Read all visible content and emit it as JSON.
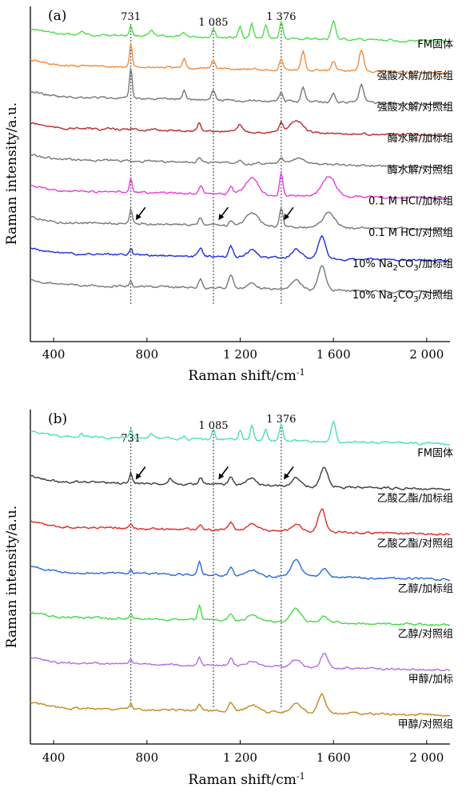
{
  "chart_data": [
    {
      "type": "line",
      "panel_label": "(a)",
      "xlabel": "Raman shift/cm",
      "xlabel_sup": "-1",
      "ylabel": "Raman intensity/a.u.",
      "xlim": [
        300,
        2100
      ],
      "x_ticks": [
        400,
        800,
        1200,
        1600,
        2000
      ],
      "x_tick_labels": [
        "400",
        "800",
        "1 200",
        "1 600",
        "2 000"
      ],
      "reference_lines": [
        {
          "x": 731,
          "label": "731"
        },
        {
          "x": 1085,
          "label": "1 085"
        },
        {
          "x": 1376,
          "label": "1 376"
        }
      ],
      "arrows_on_series": 6,
      "arrow_x": [
        745,
        1100,
        1380
      ],
      "series": [
        {
          "name": "FM固体",
          "color": "#4ddc4a",
          "offset": 0,
          "peaks": [
            [
              731,
              0.6,
              8
            ],
            [
              1085,
              0.5,
              10
            ],
            [
              1200,
              0.6,
              10
            ],
            [
              1250,
              0.8,
              10
            ],
            [
              1310,
              0.7,
              10
            ],
            [
              1376,
              0.9,
              10
            ],
            [
              1600,
              1.0,
              14
            ],
            [
              520,
              0.2,
              10
            ],
            [
              820,
              0.25,
              12
            ],
            [
              960,
              0.2,
              10
            ]
          ]
        },
        {
          "name": "强酸水解/加标组",
          "color": "#f08c3c",
          "offset": 1,
          "peaks": [
            [
              731,
              1.3,
              8
            ],
            [
              960,
              0.5,
              10
            ],
            [
              1085,
              0.5,
              10
            ],
            [
              1376,
              0.6,
              10
            ],
            [
              1470,
              1.0,
              12
            ],
            [
              1600,
              0.5,
              12
            ],
            [
              1720,
              1.2,
              14
            ]
          ]
        },
        {
          "name": "强酸水解/对照组",
          "color": "#707b78",
          "offset": 2,
          "peaks": [
            [
              731,
              1.7,
              8
            ],
            [
              960,
              0.5,
              10
            ],
            [
              1085,
              0.5,
              10
            ],
            [
              1376,
              0.5,
              10
            ],
            [
              1470,
              0.8,
              12
            ],
            [
              1600,
              0.5,
              12
            ],
            [
              1720,
              1.0,
              14
            ]
          ]
        },
        {
          "name": "酶水解/加标组",
          "color": "#b82c2c",
          "offset": 3,
          "peaks": [
            [
              1025,
              0.5,
              10
            ],
            [
              1200,
              0.4,
              14
            ],
            [
              1376,
              0.5,
              12
            ],
            [
              1440,
              0.7,
              40
            ]
          ]
        },
        {
          "name": "酶水解/对照组",
          "color": "#707b78",
          "offset": 4,
          "peaks": [
            [
              1025,
              0.3,
              10
            ],
            [
              1200,
              0.2,
              14
            ],
            [
              1376,
              0.3,
              12
            ],
            [
              1450,
              0.3,
              40
            ]
          ]
        },
        {
          "name": "0.1 M HCl/加标组",
          "color": "#e63ed8",
          "offset": 5,
          "peaks": [
            [
              731,
              0.8,
              8
            ],
            [
              1030,
              0.4,
              12
            ],
            [
              1160,
              0.4,
              12
            ],
            [
              1250,
              0.9,
              40
            ],
            [
              1376,
              1.2,
              10
            ],
            [
              1580,
              1.1,
              40
            ]
          ]
        },
        {
          "name": "0.1 M HCl/对照组",
          "color": "#707b78",
          "offset": 6,
          "peaks": [
            [
              731,
              0.8,
              8
            ],
            [
              1030,
              0.4,
              12
            ],
            [
              1160,
              0.3,
              12
            ],
            [
              1250,
              0.7,
              40
            ],
            [
              1376,
              1.1,
              10
            ],
            [
              1580,
              0.8,
              40
            ]
          ]
        },
        {
          "name": "10% Na2CO3/加标组",
          "color": "#1e2fd8",
          "offset": 7,
          "peaks": [
            [
              731,
              0.4,
              8
            ],
            [
              1030,
              0.5,
              12
            ],
            [
              1160,
              0.6,
              14
            ],
            [
              1250,
              0.4,
              30
            ],
            [
              1440,
              0.5,
              30
            ],
            [
              1550,
              1.3,
              22
            ]
          ]
        },
        {
          "name": "10% Na2CO3/对照组",
          "color": "#707b78",
          "offset": 8,
          "peaks": [
            [
              731,
              0.3,
              8
            ],
            [
              1030,
              0.5,
              12
            ],
            [
              1160,
              0.8,
              14
            ],
            [
              1250,
              0.3,
              30
            ],
            [
              1440,
              0.5,
              30
            ],
            [
              1550,
              1.4,
              22
            ]
          ]
        }
      ],
      "series_label_parts": [
        {
          "main": "FM固体"
        },
        {
          "main": "强酸水解/加标组"
        },
        {
          "main": "强酸水解/对照组"
        },
        {
          "main": "酶水解/加标组"
        },
        {
          "main": "酶水解/对照组"
        },
        {
          "main": "0.1 M HCl/加标组"
        },
        {
          "main": "0.1 M HCl/对照组"
        },
        {
          "pre": "10% Na",
          "sub1": "2",
          "mid": "CO",
          "sub2": "3",
          "post": "/加标组"
        },
        {
          "pre": "10% Na",
          "sub1": "2",
          "mid": "CO",
          "sub2": "3",
          "post": "/对照组"
        }
      ]
    },
    {
      "type": "line",
      "panel_label": "(b)",
      "xlabel": "Raman shift/cm",
      "xlabel_sup": "-1",
      "ylabel": "Raman intensity/a.u.",
      "xlim": [
        300,
        2100
      ],
      "x_ticks": [
        400,
        800,
        1200,
        1600,
        2000
      ],
      "x_tick_labels": [
        "400",
        "800",
        "1 200",
        "1 600",
        "2 000"
      ],
      "reference_lines": [
        {
          "x": 731,
          "label": "731"
        },
        {
          "x": 1085,
          "label": "1 085"
        },
        {
          "x": 1376,
          "label": "1 376"
        }
      ],
      "arrows_on_series": 1,
      "arrow_x": [
        745,
        1100,
        1380
      ],
      "series": [
        {
          "name": "FM固体",
          "color": "#4de0b4",
          "offset": 0,
          "peaks": [
            [
              731,
              0.5,
              8
            ],
            [
              1085,
              0.6,
              10
            ],
            [
              1200,
              0.6,
              10
            ],
            [
              1250,
              0.8,
              10
            ],
            [
              1310,
              0.7,
              10
            ],
            [
              1376,
              0.9,
              10
            ],
            [
              1600,
              1.1,
              14
            ],
            [
              520,
              0.2,
              10
            ],
            [
              820,
              0.25,
              12
            ],
            [
              960,
              0.2,
              10
            ]
          ]
        },
        {
          "name": "乙酸乙酯/加标组",
          "color": "#3a3a3a",
          "offset": 1,
          "peaks": [
            [
              731,
              0.6,
              8
            ],
            [
              900,
              0.3,
              12
            ],
            [
              1030,
              0.4,
              12
            ],
            [
              1160,
              0.5,
              14
            ],
            [
              1250,
              0.4,
              30
            ],
            [
              1440,
              0.5,
              30
            ],
            [
              1560,
              1.1,
              22
            ]
          ]
        },
        {
          "name": "乙酸乙酯/对照组",
          "color": "#e02a2a",
          "offset": 2,
          "peaks": [
            [
              731,
              0.3,
              8
            ],
            [
              1030,
              0.3,
              12
            ],
            [
              1160,
              0.5,
              14
            ],
            [
              1250,
              0.4,
              30
            ],
            [
              1440,
              0.4,
              30
            ],
            [
              1550,
              1.3,
              22
            ]
          ]
        },
        {
          "name": "乙醇/加标组",
          "color": "#2a6ad8",
          "offset": 3,
          "peaks": [
            [
              731,
              0.2,
              8
            ],
            [
              1025,
              0.8,
              10
            ],
            [
              1160,
              0.4,
              14
            ],
            [
              1250,
              0.3,
              30
            ],
            [
              1440,
              0.9,
              30
            ],
            [
              1560,
              0.5,
              22
            ]
          ]
        },
        {
          "name": "乙醇/对照组",
          "color": "#44d844",
          "offset": 4,
          "peaks": [
            [
              731,
              0.3,
              8
            ],
            [
              1025,
              0.8,
              10
            ],
            [
              1160,
              0.4,
              14
            ],
            [
              1250,
              0.4,
              30
            ],
            [
              1440,
              0.8,
              30
            ],
            [
              1560,
              0.4,
              22
            ]
          ]
        },
        {
          "name": "甲醇/加标",
          "color": "#b070e0",
          "offset": 5,
          "peaks": [
            [
              731,
              0.3,
              8
            ],
            [
              1025,
              0.4,
              10
            ],
            [
              1160,
              0.4,
              14
            ],
            [
              1250,
              0.3,
              30
            ],
            [
              1440,
              0.4,
              30
            ],
            [
              1560,
              0.8,
              22
            ]
          ]
        },
        {
          "name": "甲醇/对照组",
          "color": "#c08a1c",
          "offset": 6,
          "peaks": [
            [
              731,
              0.3,
              8
            ],
            [
              1025,
              0.4,
              10
            ],
            [
              1160,
              0.5,
              14
            ],
            [
              1250,
              0.4,
              30
            ],
            [
              1440,
              0.5,
              30
            ],
            [
              1550,
              1.1,
              22
            ]
          ]
        }
      ],
      "series_label_parts": [
        {
          "main": "FM固体"
        },
        {
          "main": "乙酸乙酯/加标组"
        },
        {
          "main": "乙酸乙酯/对照组"
        },
        {
          "main": "乙醇/加标组"
        },
        {
          "main": "乙醇/对照组"
        },
        {
          "main": "甲醇/加标"
        },
        {
          "main": "甲醇/对照组"
        }
      ]
    }
  ]
}
